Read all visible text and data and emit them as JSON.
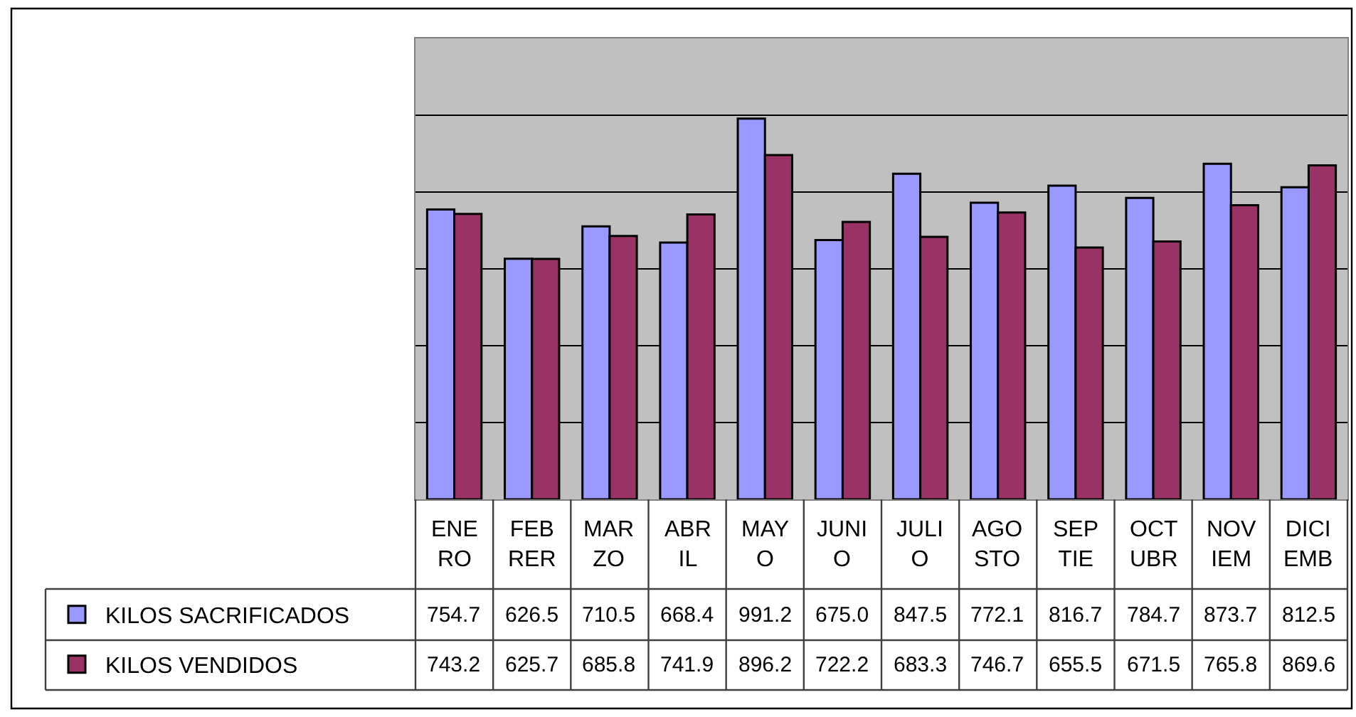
{
  "chart_data": {
    "type": "bar",
    "categories": [
      "ENE\nRO",
      "FEB\nRER",
      "MAR\nZO",
      "ABR\nIL",
      "MAY\nO",
      "JUNI\nO",
      "JULI\nO",
      "AGO\nSTO",
      "SEP\nTIE",
      "OCT\nUBR",
      "NOV\nIEM",
      "DICI\nEMB"
    ],
    "series": [
      {
        "name": "KILOS SACRIFICADOS",
        "color": "#9999ff",
        "values": [
          754.7,
          626.5,
          710.5,
          668.4,
          991.2,
          675.0,
          847.5,
          772.1,
          816.7,
          784.7,
          873.7,
          812.5
        ],
        "value_labels": [
          "754.7",
          "626.5",
          "710.5",
          "668.4",
          "991.2",
          "675.0",
          "847.5",
          "772.1",
          "816.7",
          "784.7",
          "873.7",
          "812.5"
        ]
      },
      {
        "name": "KILOS VENDIDOS",
        "color": "#993366",
        "values": [
          743.2,
          625.7,
          685.8,
          741.9,
          896.2,
          722.2,
          683.3,
          746.7,
          655.5,
          671.5,
          765.8,
          869.6
        ],
        "value_labels": [
          "743.2",
          "625.7",
          "685.8",
          "741.9",
          "896.2",
          "722.2",
          "683.3",
          "746.7",
          "655.5",
          "671.5",
          "765.8",
          "869.6"
        ]
      }
    ],
    "ylim": [
      0,
      1200
    ],
    "yticks": [
      {
        "value": 0,
        "label": null
      },
      {
        "value": 200,
        "label": null
      },
      {
        "value": 400,
        "label": null
      },
      {
        "value": 600,
        "label": null
      },
      {
        "value": 800,
        "label": null
      },
      {
        "value": 1000,
        "label": null
      },
      {
        "value": 1200,
        "label": null
      }
    ],
    "grid": "y",
    "legend": "bottom left",
    "tick_labels": "x"
  }
}
